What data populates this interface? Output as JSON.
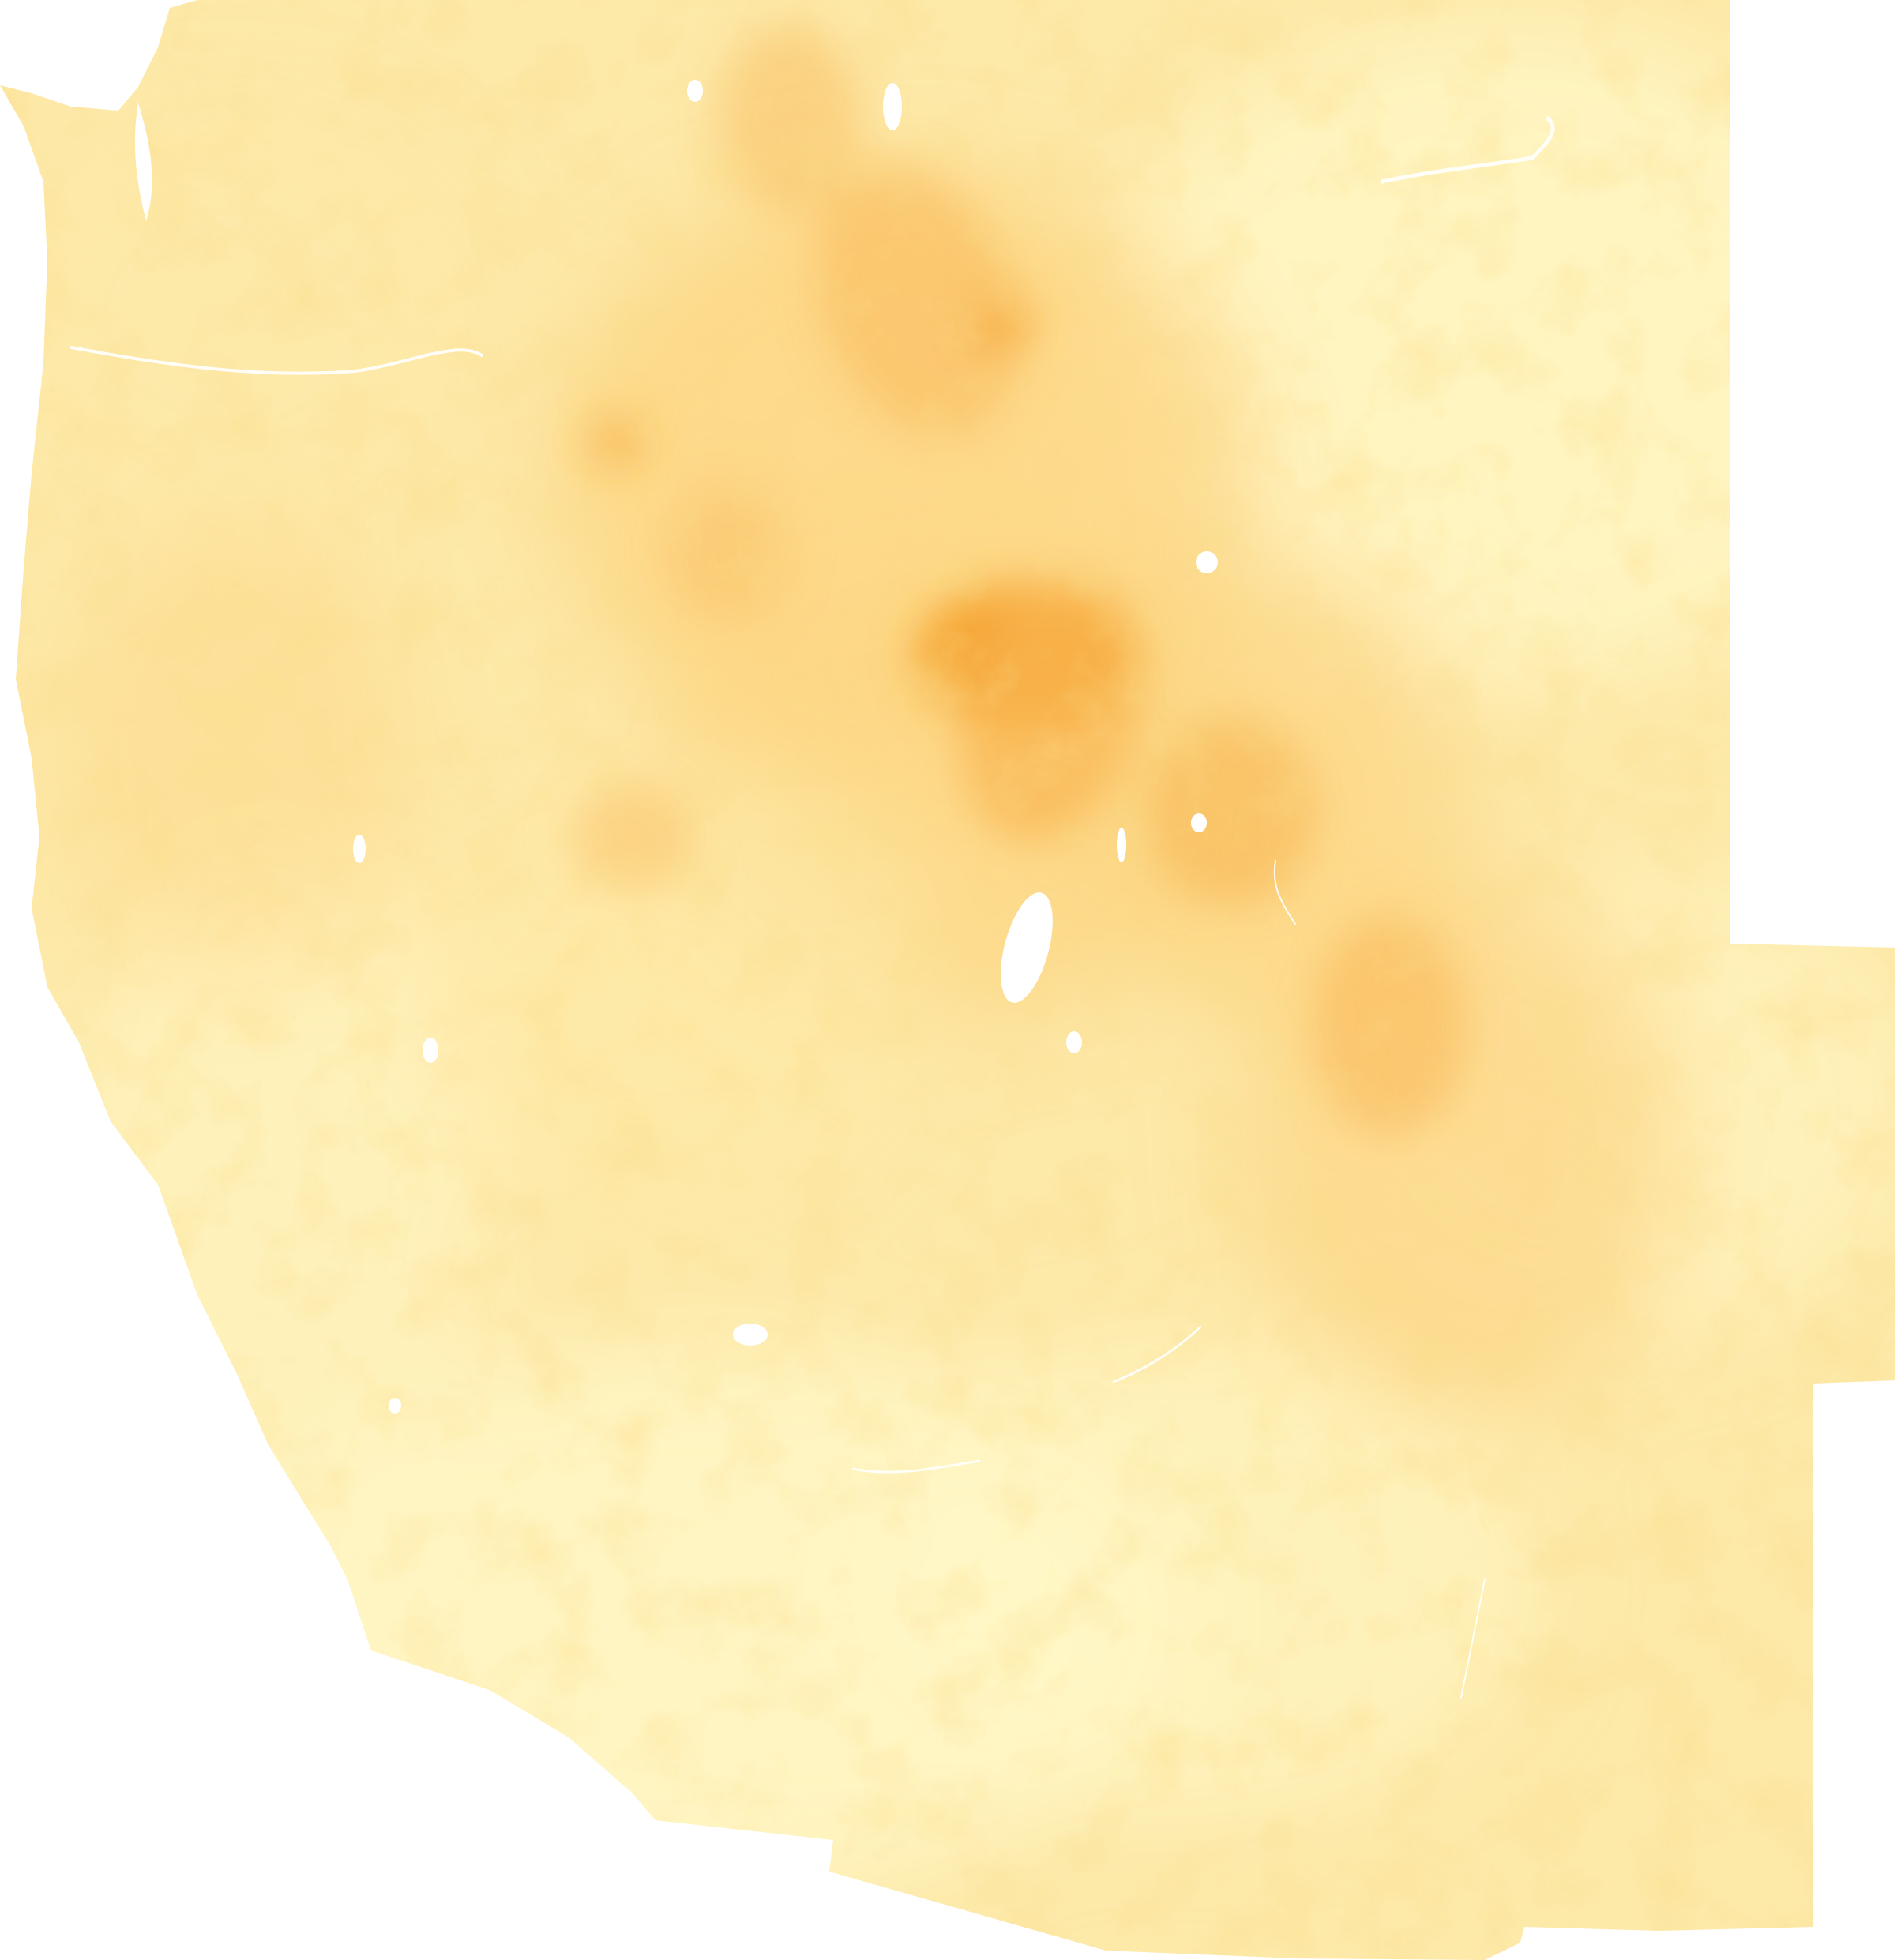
{
  "map": {
    "type": "raster-heatmap",
    "region_extent": "western-united-states",
    "has_title": false,
    "has_legend": false,
    "has_labels": false,
    "palette": {
      "low": "#fff8c8",
      "mid_low": "#fde9a8",
      "mid": "#fcd684",
      "mid_high": "#f9b552",
      "high": "#f59a22",
      "water": "#ffffff"
    }
  },
  "chart_data": {
    "type": "heatmap",
    "title": "",
    "xlabel": "",
    "ylabel": "",
    "legend": "none",
    "grid": false
  }
}
